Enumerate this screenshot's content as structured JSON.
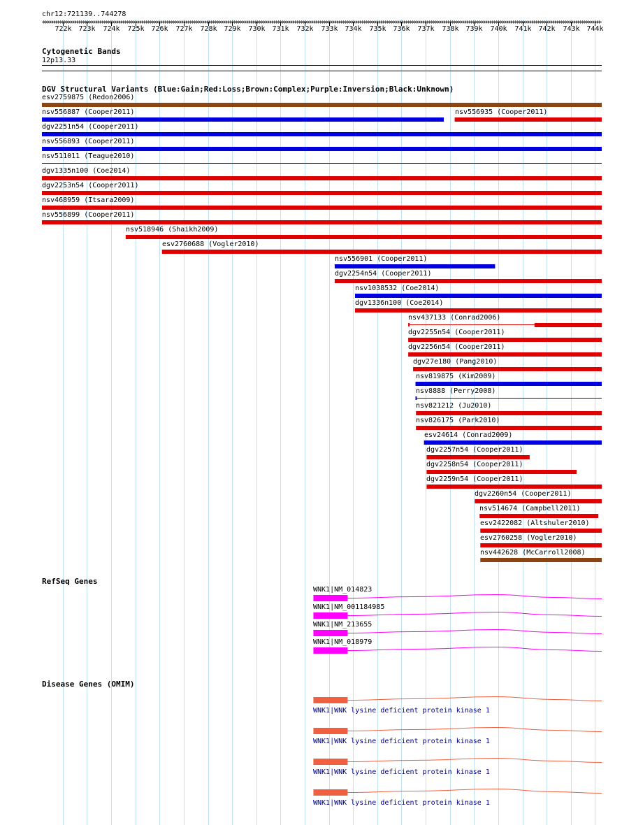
{
  "location": "chr12:721139..744278",
  "ruler": {
    "start": 721139,
    "end": 744278,
    "ticks": [
      "722k",
      "723k",
      "724k",
      "725k",
      "726k",
      "727k",
      "728k",
      "729k",
      "730k",
      "731k",
      "732k",
      "733k",
      "734k",
      "735k",
      "736k",
      "737k",
      "738k",
      "739k",
      "740k",
      "741k",
      "742k",
      "743k",
      "744k"
    ]
  },
  "cyto": {
    "title": "Cytogenetic Bands",
    "band": "12p13.33"
  },
  "dgv": {
    "title": "DGV Structural Variants (Blue:Gain;Red:Loss;Brown:Complex;Purple:Inversion;Black:Unknown)",
    "colors": {
      "gain": "#0000e0",
      "loss": "#e00000",
      "complex": "#8b4513",
      "inversion": "#800080",
      "unknown": "#000000"
    },
    "variants": [
      {
        "label": "esv2759875 (Redon2006)",
        "type": "complex",
        "start": 721139,
        "end": 744278
      },
      {
        "label": "nsv556887 (Cooper2011)",
        "type": "gain",
        "start": 721139,
        "end": 737750
      },
      {
        "label": "nsv556935 (Cooper2011)",
        "type": "loss",
        "start": 738200,
        "end": 744278
      },
      {
        "label": "dgv2251n54 (Cooper2011)",
        "type": "gain",
        "start": 721139,
        "end": 744278
      },
      {
        "label": "nsv556893 (Cooper2011)",
        "type": "gain",
        "start": 721139,
        "end": 744278
      },
      {
        "label": "nsv511011 (Teague2010)",
        "type": "unknown",
        "start": 721139,
        "end": 744278
      },
      {
        "label": "dgv1335n100 (Coe2014)",
        "type": "loss",
        "start": 721139,
        "end": 744278
      },
      {
        "label": "dgv2253n54 (Cooper2011)",
        "type": "loss",
        "start": 721139,
        "end": 744278
      },
      {
        "label": "nsv468959 (Itsara2009)",
        "type": "loss",
        "start": 721139,
        "end": 744278
      },
      {
        "label": "nsv556899 (Cooper2011)",
        "type": "loss",
        "start": 721139,
        "end": 744278
      },
      {
        "label": "nsv518946 (Shaikh2009)",
        "type": "loss",
        "start": 724600,
        "end": 744278
      },
      {
        "label": "esv2760688 (Vogler2010)",
        "type": "loss",
        "start": 726100,
        "end": 744278
      },
      {
        "label": "nsv556901 (Cooper2011)",
        "type": "gain",
        "start": 733240,
        "end": 739870
      },
      {
        "label": "dgv2254n54 (Cooper2011)",
        "type": "loss",
        "start": 733240,
        "end": 744278
      },
      {
        "label": "nsv1038532 (Coe2014)",
        "type": "gain",
        "start": 734080,
        "end": 744278
      },
      {
        "label": "dgv1336n100 (Coe2014)",
        "type": "loss",
        "start": 734080,
        "end": 744278
      },
      {
        "label": "nsv437133 (Conrad2006)",
        "type": "loss",
        "start": 736280,
        "end": 744278
      },
      {
        "label": "dgv2255n54 (Cooper2011)",
        "type": "loss",
        "start": 736280,
        "end": 744278
      },
      {
        "label": "dgv2256n54 (Cooper2011)",
        "type": "loss",
        "start": 736280,
        "end": 744278
      },
      {
        "label": "dgv27e180 (Pang2010)",
        "type": "loss",
        "start": 736480,
        "end": 744278
      },
      {
        "label": "nsv819875 (Kim2009)",
        "type": "gain",
        "start": 736580,
        "end": 744278
      },
      {
        "label": "nsv8888 (Perry2008)",
        "type": "gain",
        "start": 736580,
        "end": 744278
      },
      {
        "label": "nsv821212 (Ju2010)",
        "type": "loss",
        "start": 736600,
        "end": 744278
      },
      {
        "label": "nsv826175 (Park2010)",
        "type": "loss",
        "start": 736600,
        "end": 744278
      },
      {
        "label": "esv24614 (Conrad2009)",
        "type": "gain",
        "start": 736930,
        "end": 744278
      },
      {
        "label": "dgv2257n54 (Cooper2011)",
        "type": "loss",
        "start": 737040,
        "end": 741300
      },
      {
        "label": "dgv2258n54 (Cooper2011)",
        "type": "loss",
        "start": 737040,
        "end": 743240
      },
      {
        "label": "dgv2259n54 (Cooper2011)",
        "type": "loss",
        "start": 737040,
        "end": 744278
      },
      {
        "label": "dgv2260n54 (Cooper2011)",
        "type": "loss",
        "start": 739030,
        "end": 744278
      },
      {
        "label": "nsv514674 (Campbell2011)",
        "type": "loss",
        "start": 739230,
        "end": 744140
      },
      {
        "label": "esv2422082 (Altshuler2010)",
        "type": "loss",
        "start": 739260,
        "end": 744278
      },
      {
        "label": "esv2760258 (Vogler2010)",
        "type": "loss",
        "start": 739260,
        "end": 744278
      },
      {
        "label": "nsv442628 (McCarroll2008)",
        "type": "complex",
        "start": 739260,
        "end": 744278
      }
    ]
  },
  "refseq": {
    "title": "RefSeq Genes",
    "color": "#ff00ff",
    "genes": [
      {
        "label": "WNK1|NM_014823",
        "start": 732360,
        "end": 744278
      },
      {
        "label": "WNK1|NM_001184985",
        "start": 732360,
        "end": 744278
      },
      {
        "label": "WNK1|NM_213655",
        "start": 732360,
        "end": 744278
      },
      {
        "label": "WNK1|NM_018979",
        "start": 732360,
        "end": 744278
      }
    ]
  },
  "omim": {
    "title": "Disease Genes (OMIM)",
    "color": "#f06040",
    "genes": [
      {
        "label": "WNK1|WNK lysine deficient protein kinase 1",
        "start": 732360,
        "end": 744278
      },
      {
        "label": "WNK1|WNK lysine deficient protein kinase 1",
        "start": 732360,
        "end": 744278
      },
      {
        "label": "WNK1|WNK lysine deficient protein kinase 1",
        "start": 732360,
        "end": 744278
      },
      {
        "label": "WNK1|WNK lysine deficient protein kinase 1",
        "start": 732360,
        "end": 744278
      }
    ]
  }
}
